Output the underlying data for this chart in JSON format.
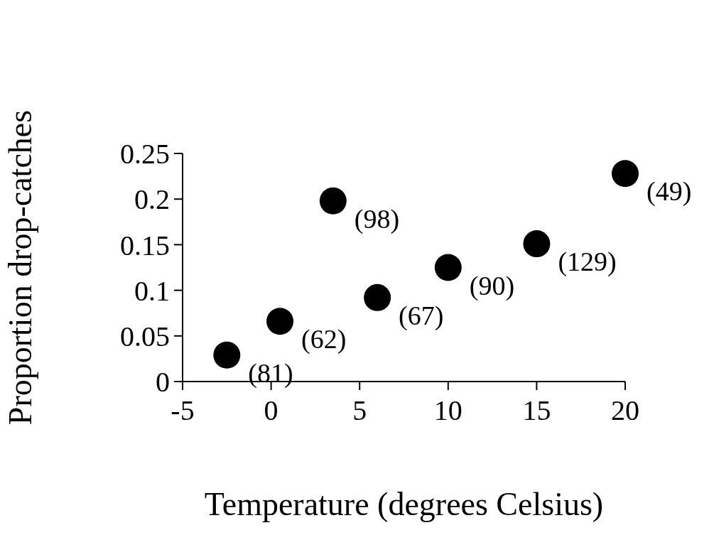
{
  "chart_data": {
    "type": "scatter",
    "xlabel": "Temperature (degrees Celsius)",
    "ylabel": "Proportion drop-catches",
    "x": [
      -2.5,
      0.5,
      3.5,
      6,
      10,
      15,
      20
    ],
    "values": [
      0.029,
      0.066,
      0.198,
      0.092,
      0.125,
      0.151,
      0.228
    ],
    "color": "#000000",
    "marker": "circle",
    "grid": false,
    "legend": false,
    "xlim": [
      -5,
      20
    ],
    "xticks": [
      -5,
      0,
      5,
      10,
      15,
      20
    ],
    "ylim": [
      0,
      0.25
    ],
    "yticks": [
      0,
      0.05,
      0.1,
      0.15,
      0.2,
      0.25
    ],
    "annotations": [
      {
        "text": "(81)",
        "x": -2.5,
        "y": 0.029
      },
      {
        "text": "(62)",
        "x": 0.5,
        "y": 0.066
      },
      {
        "text": "(98)",
        "x": 3.5,
        "y": 0.198
      },
      {
        "text": "(67)",
        "x": 6,
        "y": 0.092
      },
      {
        "text": "(90)",
        "x": 10,
        "y": 0.125
      },
      {
        "text": "(129)",
        "x": 15,
        "y": 0.151
      },
      {
        "text": "(49)",
        "x": 20,
        "y": 0.228
      }
    ]
  }
}
